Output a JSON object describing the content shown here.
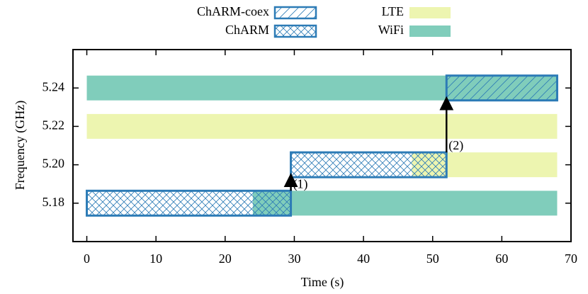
{
  "chart_data": {
    "type": "timeline",
    "xlabel": "Time (s)",
    "ylabel": "Frequency (GHz)",
    "xlim": [
      -2,
      70
    ],
    "xticks": [
      0,
      10,
      20,
      30,
      40,
      50,
      60,
      70
    ],
    "ylim": [
      5.16,
      5.26
    ],
    "yticks": [
      5.18,
      {
        "value": 5.2,
        "label": "5.20"
      },
      5.22,
      5.24
    ],
    "legend": "top",
    "series": [
      {
        "name": "ChARM-coex",
        "color": "#2c7bb6",
        "hatch": "diagonal",
        "starts": [
          52
        ],
        "ends": [
          68
        ],
        "values": [
          5.24
        ]
      },
      {
        "name": "ChARM",
        "color": "#2c7bb6",
        "hatch": "cross",
        "starts": [
          0,
          29.5
        ],
        "ends": [
          29.5,
          52
        ],
        "values": [
          5.18,
          5.2
        ]
      },
      {
        "name": "LTE",
        "color": "#edf5b0",
        "starts": [
          0,
          47
        ],
        "ends": [
          68,
          68
        ],
        "values": [
          5.22,
          5.2
        ]
      },
      {
        "name": "WiFi",
        "color": "#80cdbb",
        "starts": [
          0,
          24
        ],
        "ends": [
          68,
          68
        ],
        "values": [
          5.24,
          5.18
        ]
      }
    ],
    "annotations": [
      {
        "text": "(1)",
        "x": 29.5,
        "from": 5.18,
        "to": 5.2
      },
      {
        "text": "(2)",
        "x": 52,
        "from": 5.2,
        "to": 5.24
      }
    ]
  }
}
